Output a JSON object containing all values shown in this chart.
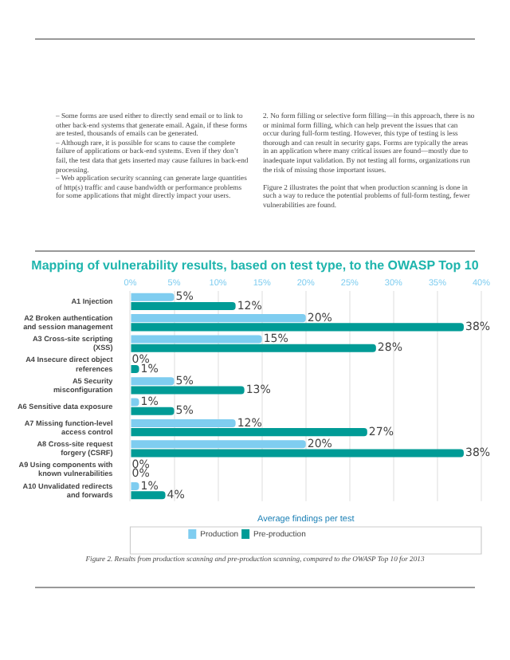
{
  "chart_data": {
    "type": "bar",
    "orientation": "horizontal",
    "title": "Mapping of vulnerability results, based on test type, to the OWASP Top 10",
    "categories": [
      "A1 Injection",
      "A2 Broken authentication and session management",
      "A3 Cross-site scripting (XSS)",
      "A4 Insecure direct object references",
      "A5 Security misconfiguration",
      "A6 Sensitive data exposure",
      "A7 Missing function-level access control",
      "A8 Cross-site request forgery (CSRF)",
      "A9 Using components with known vulnerabilities",
      "A10 Unvalidated redirects and forwards"
    ],
    "series": [
      {
        "name": "Production",
        "color": "#7fcdf0",
        "values": [
          5,
          20,
          15,
          0,
          5,
          1,
          12,
          20,
          0,
          1
        ],
        "value_labels": [
          "5%",
          "20%",
          "15%",
          "0%",
          "5%",
          "1%",
          "12%",
          "20%",
          "0%",
          "1%"
        ]
      },
      {
        "name": "Pre-production",
        "color": "#009b96",
        "values": [
          12,
          38,
          28,
          1,
          13,
          5,
          27,
          38,
          0,
          4
        ],
        "value_labels": [
          "12%",
          "38%",
          "28%",
          "1%",
          "13%",
          "5%",
          "27%",
          "38%",
          "0%",
          "4%"
        ]
      }
    ],
    "xlim": [
      0,
      40
    ],
    "xticks": [
      {
        "value": 0,
        "label": "0%"
      },
      {
        "value": 5,
        "label": "5%"
      },
      {
        "value": 10,
        "label": "10%"
      },
      {
        "value": 15,
        "label": "15%"
      },
      {
        "value": 20,
        "label": "20%"
      },
      {
        "value": 25,
        "label": "25%"
      },
      {
        "value": 30,
        "label": "30%"
      },
      {
        "value": 35,
        "label": "35%"
      },
      {
        "value": 40,
        "label": "40%"
      }
    ],
    "xlabel": "Average findings per test",
    "grid": "x",
    "legend": "bottom",
    "annotations": [
      "– Some forms are used either to directly send email or to link to other back-end systems that generate email. Again, if these forms are tested, thousands of emails can be generated.\n– Although rare, it is possible for scans to cause the complete failure of applications or back-end systems. Even if they don’t fail, the test data that gets inserted may cause failures in back-end processing.\n– Web application security scanning can generate large quantities of http(s) traffic and cause bandwidth or performance problems for some applications that might directly impact your users.",
      "2. No form filling or selective form filling—in this approach, there is no or minimal form filling, which can help prevent the issues that can occur during full-form testing. However, this type of testing is less thorough and can result in security gaps. Forms are typically the areas in an application where many critical issues are found—mostly due to inadequate input validation. By not testing all forms, organizations run the risk of missing those important issues.\n\nFigure 2 illustrates the point that when production scanning is done in such a way to reduce the potential problems of full-form testing, fewer vulnerabilities are found.",
      "Figure 2. Results from production scanning and pre-production scanning, compared to the OWASP Top 10 for 2013"
    ]
  }
}
